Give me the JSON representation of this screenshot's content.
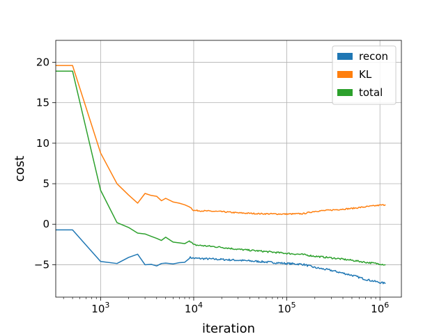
{
  "chart_data": {
    "type": "line",
    "title": "",
    "xlabel": "iteration",
    "ylabel": "cost",
    "xscale": "log",
    "xlim": [
      330,
      1700000
    ],
    "ylim": [
      -9,
      22.7
    ],
    "grid": true,
    "legend": "top-right",
    "x_ticks": [
      {
        "value": 1000,
        "base": "10",
        "exp": "3"
      },
      {
        "value": 10000,
        "base": "10",
        "exp": "4"
      },
      {
        "value": 100000,
        "base": "10",
        "exp": "5"
      },
      {
        "value": 1000000,
        "base": "10",
        "exp": "6"
      }
    ],
    "y_ticks": [
      {
        "value": 20,
        "label": "20"
      },
      {
        "value": 15,
        "label": "15"
      },
      {
        "value": 10,
        "label": "10"
      },
      {
        "value": 5,
        "label": "5"
      },
      {
        "value": 0,
        "label": "0"
      },
      {
        "value": -5,
        "label": "−5"
      }
    ],
    "series": [
      {
        "name": "recon",
        "color": "#1f77b4",
        "noise": 0.12,
        "points": [
          [
            330,
            -0.7
          ],
          [
            500,
            -0.7
          ],
          [
            1000,
            -4.6
          ],
          [
            1500,
            -4.85
          ],
          [
            2000,
            -4.1
          ],
          [
            2500,
            -3.7
          ],
          [
            3000,
            -5.0
          ],
          [
            3500,
            -4.95
          ],
          [
            4000,
            -5.15
          ],
          [
            4500,
            -4.85
          ],
          [
            5000,
            -4.8
          ],
          [
            6000,
            -4.9
          ],
          [
            7000,
            -4.75
          ],
          [
            8000,
            -4.7
          ],
          [
            9000,
            -4.1
          ],
          [
            10000,
            -4.2
          ],
          [
            20000,
            -4.35
          ],
          [
            30000,
            -4.45
          ],
          [
            50000,
            -4.6
          ],
          [
            100000,
            -4.85
          ],
          [
            150000,
            -4.95
          ],
          [
            200000,
            -5.35
          ],
          [
            300000,
            -5.7
          ],
          [
            500000,
            -6.3
          ],
          [
            700000,
            -6.8
          ],
          [
            1000000,
            -7.2
          ],
          [
            1150000,
            -7.3
          ]
        ]
      },
      {
        "name": "KL",
        "color": "#ff7f0e",
        "noise": 0.08,
        "points": [
          [
            330,
            19.6
          ],
          [
            500,
            19.6
          ],
          [
            1000,
            8.8
          ],
          [
            1500,
            5.0
          ],
          [
            2000,
            3.6
          ],
          [
            2500,
            2.6
          ],
          [
            3000,
            3.8
          ],
          [
            3500,
            3.55
          ],
          [
            4000,
            3.45
          ],
          [
            4500,
            2.9
          ],
          [
            5000,
            3.2
          ],
          [
            6000,
            2.75
          ],
          [
            7000,
            2.6
          ],
          [
            8000,
            2.4
          ],
          [
            9000,
            2.2
          ],
          [
            10000,
            1.7
          ],
          [
            20000,
            1.55
          ],
          [
            30000,
            1.4
          ],
          [
            50000,
            1.3
          ],
          [
            100000,
            1.25
          ],
          [
            150000,
            1.3
          ],
          [
            200000,
            1.6
          ],
          [
            300000,
            1.75
          ],
          [
            500000,
            1.95
          ],
          [
            700000,
            2.15
          ],
          [
            1000000,
            2.35
          ],
          [
            1150000,
            2.4
          ]
        ]
      },
      {
        "name": "total",
        "color": "#2ca02c",
        "noise": 0.1,
        "points": [
          [
            330,
            18.9
          ],
          [
            500,
            18.9
          ],
          [
            1000,
            4.2
          ],
          [
            1500,
            0.2
          ],
          [
            2000,
            -0.4
          ],
          [
            2500,
            -1.1
          ],
          [
            3000,
            -1.2
          ],
          [
            3500,
            -1.5
          ],
          [
            4000,
            -1.75
          ],
          [
            4500,
            -2.0
          ],
          [
            5000,
            -1.6
          ],
          [
            6000,
            -2.2
          ],
          [
            7000,
            -2.3
          ],
          [
            8000,
            -2.4
          ],
          [
            9000,
            -2.0
          ],
          [
            10000,
            -2.55
          ],
          [
            20000,
            -2.85
          ],
          [
            30000,
            -3.1
          ],
          [
            50000,
            -3.3
          ],
          [
            100000,
            -3.6
          ],
          [
            150000,
            -3.75
          ],
          [
            200000,
            -3.95
          ],
          [
            300000,
            -4.15
          ],
          [
            500000,
            -4.45
          ],
          [
            700000,
            -4.7
          ],
          [
            1000000,
            -4.9
          ],
          [
            1150000,
            -5.0
          ]
        ]
      }
    ]
  }
}
